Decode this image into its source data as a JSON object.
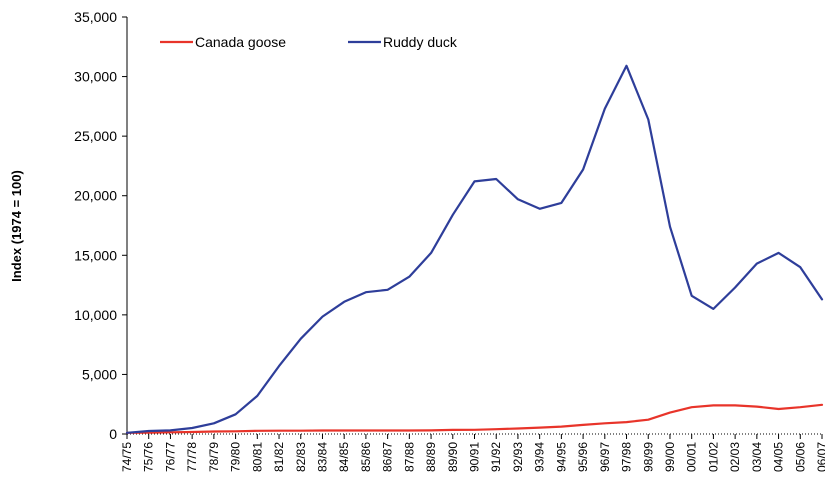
{
  "chart_data": {
    "type": "line",
    "ylabel": "Index (1974 = 100)",
    "ylim": [
      0,
      35000
    ],
    "yticks": [
      "0",
      "5,000",
      "10,000",
      "15,000",
      "20,000",
      "25,000",
      "30,000",
      "35,000"
    ],
    "ytick_values": [
      0,
      5000,
      10000,
      15000,
      20000,
      25000,
      30000,
      35000
    ],
    "grid": false,
    "legend_position": "top",
    "categories": [
      "74/75",
      "75/76",
      "76/77",
      "77/78",
      "78/79",
      "79/80",
      "80/81",
      "81/82",
      "82/83",
      "83/84",
      "84/85",
      "85/86",
      "86/87",
      "87/88",
      "88/89",
      "89/90",
      "90/91",
      "91/92",
      "92/93",
      "93/94",
      "94/95",
      "95/96",
      "96/97",
      "97/98",
      "98/99",
      "99/00",
      "00/01",
      "01/02",
      "02/03",
      "03/04",
      "04/05",
      "05/06",
      "06/07"
    ],
    "series": [
      {
        "name": "Canada goose",
        "color": "#e8342a",
        "values": [
          100,
          120,
          140,
          170,
          210,
          230,
          270,
          280,
          280,
          290,
          290,
          290,
          290,
          290,
          300,
          340,
          350,
          400,
          460,
          540,
          620,
          760,
          900,
          1000,
          1200,
          1800,
          2250,
          2400,
          2400,
          2300,
          2100,
          2250,
          2450
        ]
      },
      {
        "name": "Ruddy duck",
        "color": "#2e3e9a",
        "values": [
          100,
          250,
          300,
          500,
          900,
          1650,
          3200,
          5700,
          8000,
          9850,
          11100,
          11900,
          12100,
          13200,
          15200,
          18400,
          21200,
          21400,
          19700,
          18900,
          19400,
          22200,
          27300,
          30900,
          26400,
          17400,
          11600,
          10500,
          12300,
          14300,
          15200,
          14000,
          11300
        ]
      }
    ]
  }
}
